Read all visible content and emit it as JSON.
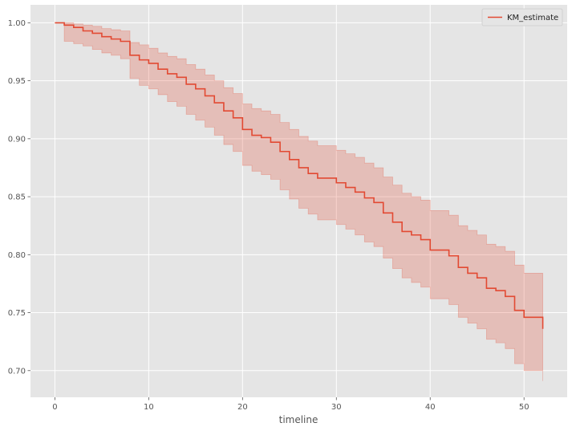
{
  "chart_data": {
    "type": "line",
    "title": "",
    "xlabel": "timeline",
    "ylabel": "",
    "xlim": [
      -2.6,
      54.6
    ],
    "ylim": [
      0.677,
      1.0155
    ],
    "x_ticks": [
      0,
      10,
      20,
      30,
      40,
      50
    ],
    "x_tick_labels": [
      "0",
      "10",
      "20",
      "30",
      "40",
      "50"
    ],
    "y_ticks": [
      0.7,
      0.75,
      0.8,
      0.85,
      0.9,
      0.95,
      1.0
    ],
    "y_tick_labels": [
      "0.70",
      "0.75",
      "0.80",
      "0.85",
      "0.90",
      "0.95",
      "1.00"
    ],
    "grid": true,
    "legend_position": "top-right",
    "series": [
      {
        "name": "KM_estimate",
        "color": "#e24a33",
        "x": [
          0,
          1,
          2,
          3,
          4,
          5,
          6,
          7,
          8,
          9,
          10,
          11,
          12,
          13,
          14,
          15,
          16,
          17,
          18,
          19,
          20,
          21,
          22,
          23,
          24,
          25,
          26,
          27,
          28,
          29,
          30,
          31,
          32,
          33,
          34,
          35,
          36,
          37,
          38,
          39,
          40,
          41,
          42,
          43,
          44,
          45,
          46,
          47,
          48,
          49,
          50,
          51,
          52
        ],
        "y": [
          1.0,
          0.998,
          0.996,
          0.993,
          0.991,
          0.988,
          0.986,
          0.984,
          0.972,
          0.968,
          0.965,
          0.96,
          0.956,
          0.953,
          0.947,
          0.943,
          0.937,
          0.931,
          0.924,
          0.918,
          0.908,
          0.903,
          0.901,
          0.897,
          0.889,
          0.882,
          0.875,
          0.87,
          0.866,
          0.866,
          0.862,
          0.858,
          0.854,
          0.849,
          0.845,
          0.836,
          0.828,
          0.82,
          0.817,
          0.813,
          0.804,
          0.804,
          0.799,
          0.789,
          0.784,
          0.78,
          0.771,
          0.769,
          0.764,
          0.752,
          0.746,
          0.746,
          0.736
        ],
        "ci_upper": [
          1.0,
          1.0,
          0.999,
          0.998,
          0.997,
          0.995,
          0.994,
          0.993,
          0.983,
          0.981,
          0.978,
          0.974,
          0.971,
          0.969,
          0.964,
          0.96,
          0.955,
          0.95,
          0.944,
          0.939,
          0.93,
          0.926,
          0.924,
          0.921,
          0.914,
          0.908,
          0.902,
          0.898,
          0.894,
          0.894,
          0.89,
          0.887,
          0.884,
          0.879,
          0.875,
          0.867,
          0.86,
          0.853,
          0.85,
          0.847,
          0.838,
          0.838,
          0.834,
          0.825,
          0.821,
          0.817,
          0.809,
          0.807,
          0.803,
          0.791,
          0.784,
          0.784,
          0.784
        ],
        "ci_lower": [
          1.0,
          0.984,
          0.982,
          0.98,
          0.977,
          0.974,
          0.972,
          0.969,
          0.952,
          0.946,
          0.943,
          0.938,
          0.932,
          0.928,
          0.921,
          0.916,
          0.91,
          0.903,
          0.895,
          0.889,
          0.877,
          0.872,
          0.869,
          0.865,
          0.856,
          0.848,
          0.84,
          0.835,
          0.83,
          0.83,
          0.826,
          0.822,
          0.817,
          0.811,
          0.807,
          0.797,
          0.788,
          0.78,
          0.776,
          0.772,
          0.762,
          0.762,
          0.757,
          0.746,
          0.741,
          0.736,
          0.727,
          0.724,
          0.719,
          0.706,
          0.7,
          0.7,
          0.691
        ]
      }
    ]
  }
}
